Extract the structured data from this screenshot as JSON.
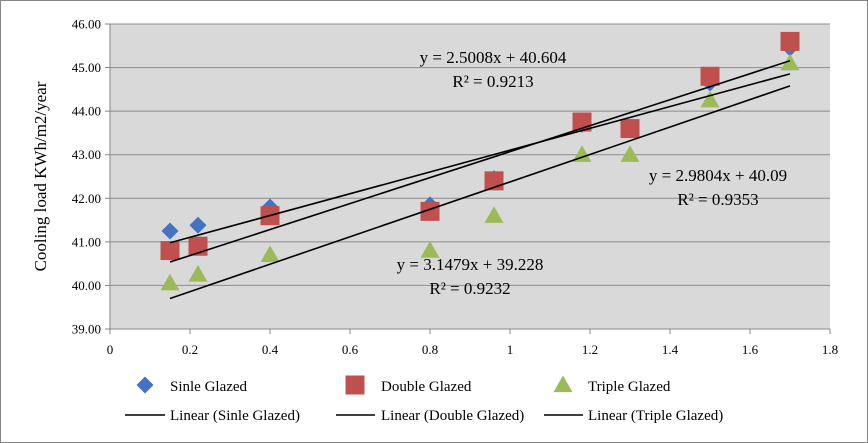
{
  "chart_data": {
    "type": "scatter",
    "title": "",
    "xlabel": "",
    "ylabel": "Cooling load KWh/m2/year",
    "xlim": [
      0,
      1.8
    ],
    "ylim": [
      39.0,
      46.0
    ],
    "x_ticks": [
      "0",
      "0.2",
      "0.4",
      "0.6",
      "0.8",
      "1",
      "1.2",
      "1.4",
      "1.6",
      "1.8"
    ],
    "y_ticks": [
      "39.00",
      "40.00",
      "41.00",
      "42.00",
      "43.00",
      "44.00",
      "45.00",
      "46.00"
    ],
    "grid": true,
    "legend_position": "bottom",
    "series": [
      {
        "name": "Sinle Glazed",
        "marker": "diamond",
        "color": "#4472C4",
        "x": [
          0.15,
          0.22,
          0.4,
          0.8,
          0.96,
          1.18,
          1.3,
          1.5,
          1.7
        ],
        "y": [
          41.25,
          41.38,
          41.8,
          41.85,
          42.45,
          43.7,
          43.6,
          44.65,
          45.45
        ]
      },
      {
        "name": "Double Glazed",
        "marker": "square",
        "color": "#C0504D",
        "x": [
          0.15,
          0.22,
          0.4,
          0.8,
          0.96,
          1.18,
          1.3,
          1.5,
          1.7
        ],
        "y": [
          40.8,
          40.9,
          41.6,
          41.7,
          42.4,
          43.75,
          43.6,
          44.8,
          45.6
        ]
      },
      {
        "name": "Triple Glazed",
        "marker": "triangle",
        "color": "#9BBB59",
        "x": [
          0.15,
          0.22,
          0.4,
          0.8,
          0.96,
          1.18,
          1.3,
          1.5,
          1.7
        ],
        "y": [
          40.05,
          40.25,
          40.7,
          40.8,
          41.6,
          43.0,
          43.0,
          44.25,
          45.1
        ]
      }
    ],
    "trendlines": [
      {
        "name": "Linear (Sinle Glazed)",
        "slope": 2.5008,
        "intercept": 40.604,
        "x_range": [
          0.15,
          1.7
        ],
        "color": "#000000"
      },
      {
        "name": "Linear (Double Glazed)",
        "slope": 2.9804,
        "intercept": 40.09,
        "x_range": [
          0.15,
          1.7
        ],
        "color": "#000000"
      },
      {
        "name": "Linear (Triple Glazed)",
        "slope": 3.1479,
        "intercept": 39.228,
        "x_range": [
          0.15,
          1.7
        ],
        "color": "#000000"
      }
    ],
    "annotations": [
      {
        "lines": [
          "y = 2.5008x + 40.604",
          "R² = 0.9213"
        ]
      },
      {
        "lines": [
          "y = 2.9804x + 40.09",
          "R² = 0.9353"
        ]
      },
      {
        "lines": [
          "y = 3.1479x + 39.228",
          "R² = 0.9232"
        ]
      }
    ]
  }
}
